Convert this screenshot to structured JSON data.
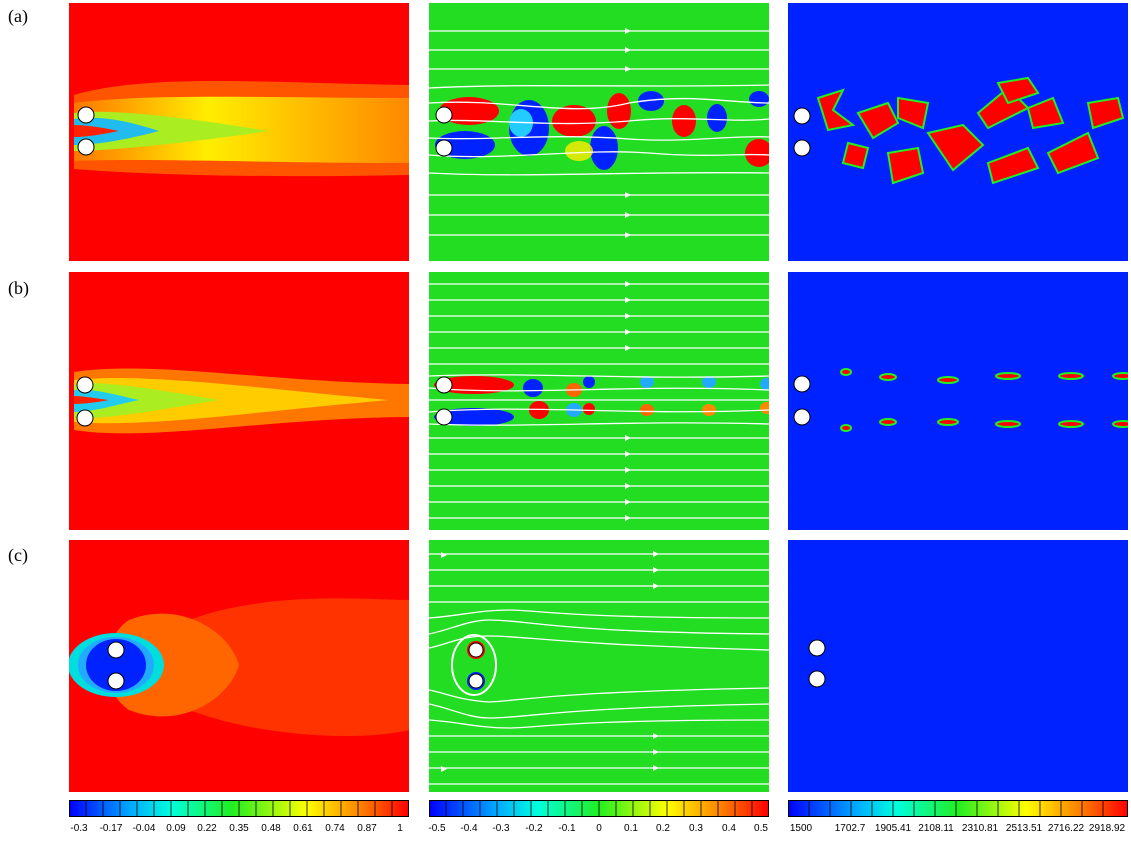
{
  "row_labels": [
    "(a)",
    "(b)",
    "(c)"
  ],
  "colorbars": [
    {
      "ticks": [
        "-0.3",
        "-0.17",
        "-0.04",
        "0.09",
        "0.22",
        "0.35",
        "0.48",
        "0.61",
        "0.74",
        "0.87",
        "1"
      ]
    },
    {
      "ticks": [
        "-0.5",
        "-0.4",
        "-0.3",
        "-0.2",
        "-0.1",
        "0",
        "0.1",
        "0.2",
        "0.3",
        "0.4",
        "0.5"
      ]
    },
    {
      "ticks": [
        "1500",
        "1702.7",
        "1905.41",
        "2108.11",
        "2310.81",
        "2513.51",
        "2716.22",
        "2918.92"
      ]
    }
  ],
  "colors": {
    "red": "#ff0000",
    "green": "#22dd22",
    "blue": "#0022ff",
    "white": "#ffffff"
  }
}
